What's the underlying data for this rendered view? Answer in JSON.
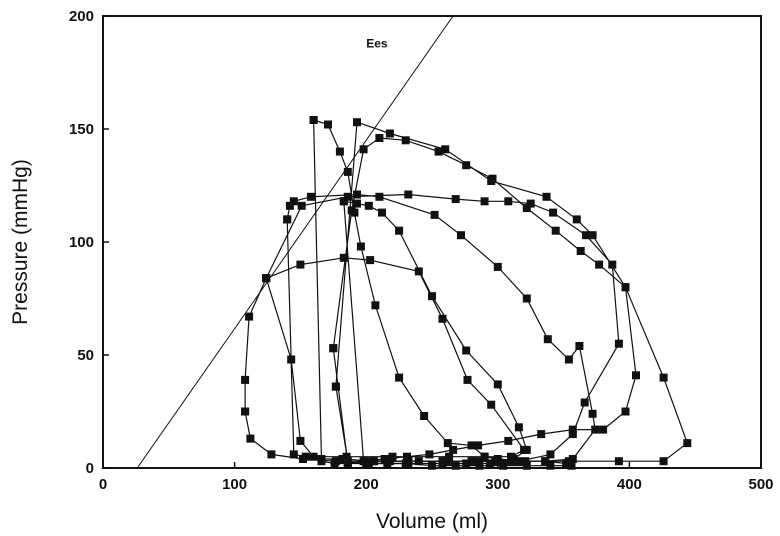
{
  "chart_data": {
    "type": "scatter",
    "title": "",
    "xlabel": "Volume (ml)",
    "ylabel": "Pressure (mmHg)",
    "xlim": [
      0,
      500
    ],
    "ylim": [
      0,
      200
    ],
    "x_ticks": [
      "0",
      "100",
      "200",
      "300",
      "400",
      "500"
    ],
    "y_ticks": [
      "0",
      "50",
      "100",
      "150",
      "200"
    ],
    "grid": false,
    "legend": "none",
    "colors": {
      "line": "#111111",
      "marker": "#111111",
      "axis": "#111111"
    },
    "annotations": [
      {
        "text": "Ees",
        "x": 200,
        "y": 186
      }
    ],
    "ees_line": [
      [
        26,
        0
      ],
      [
        266,
        200
      ]
    ],
    "series": [
      {
        "x": [
          108,
          108,
          111,
          124,
          151,
          186,
          232,
          268,
          290,
          308,
          325,
          342,
          367,
          387,
          392,
          366,
          357,
          340,
          316,
          294,
          276,
          258,
          230,
          202,
          177,
          152,
          128,
          112,
          108
        ],
        "y": [
          25,
          39,
          67,
          84,
          116,
          120,
          121,
          119,
          118,
          118,
          117,
          113,
          103,
          90,
          55,
          29,
          15,
          6,
          3,
          2,
          2,
          2,
          2,
          2,
          3,
          4,
          6,
          13,
          25
        ]
      },
      {
        "x": [
          140,
          142,
          145,
          158,
          193,
          210,
          252,
          272,
          300,
          322,
          338,
          354,
          362,
          372,
          374,
          357,
          336,
          310,
          285,
          260,
          232,
          205,
          182,
          166,
          154,
          145,
          140
        ],
        "y": [
          110,
          116,
          118,
          120,
          121,
          120,
          112,
          103,
          89,
          75,
          57,
          48,
          54,
          24,
          17,
          4,
          3,
          3,
          3,
          3,
          3,
          3,
          4,
          4,
          5,
          6,
          110
        ]
      },
      {
        "x": [
          124,
          150,
          183,
          203,
          240,
          258,
          277,
          295,
          320,
          310,
          290,
          263,
          220,
          185,
          160,
          150,
          143,
          124
        ],
        "y": [
          84,
          90,
          93,
          92,
          87,
          66,
          39,
          28,
          8,
          5,
          5,
          5,
          5,
          5,
          5,
          12,
          48,
          84
        ]
      },
      {
        "x": [
          183,
          193,
          202,
          212,
          225,
          250,
          276,
          300,
          316,
          322,
          312,
          298,
          280,
          262,
          240,
          218,
          198,
          183
        ],
        "y": [
          118,
          117,
          116,
          113,
          105,
          76,
          52,
          37,
          18,
          8,
          4,
          3,
          3,
          3,
          3,
          3,
          3,
          118
        ]
      },
      {
        "x": [
          160,
          171,
          180,
          186,
          191,
          196,
          207,
          225,
          244,
          262,
          280,
          290,
          300,
          321,
          336,
          352,
          356,
          340,
          322,
          304,
          286,
          268,
          250,
          232,
          216,
          200,
          186,
          176,
          166,
          160
        ],
        "y": [
          154,
          152,
          140,
          131,
          113,
          98,
          72,
          40,
          23,
          11,
          10,
          5,
          4,
          3,
          3,
          2,
          1,
          1,
          1,
          1,
          1,
          1,
          1,
          2,
          2,
          2,
          2,
          2,
          3,
          154
        ]
      },
      {
        "x": [
          175,
          189,
          198,
          210,
          230,
          255,
          276,
          296,
          322,
          344,
          363,
          377,
          397,
          405,
          397,
          380,
          357,
          333,
          308,
          285,
          266,
          248,
          231,
          214,
          199,
          186,
          175
        ],
        "y": [
          53,
          114,
          141,
          146,
          145,
          140,
          134,
          128,
          115,
          105,
          96,
          90,
          80,
          41,
          25,
          17,
          17,
          15,
          12,
          10,
          8,
          6,
          5,
          4,
          3,
          2,
          53
        ]
      },
      {
        "x": [
          177,
          193,
          218,
          260,
          295,
          337,
          360,
          372,
          397,
          426,
          444,
          426,
          392,
          354,
          312,
          280,
          258,
          232,
          206,
          186,
          177
        ],
        "y": [
          36,
          153,
          148,
          141,
          127,
          120,
          110,
          103,
          80,
          40,
          11,
          3,
          3,
          3,
          3,
          3,
          3,
          3,
          3,
          3,
          36
        ]
      }
    ]
  }
}
